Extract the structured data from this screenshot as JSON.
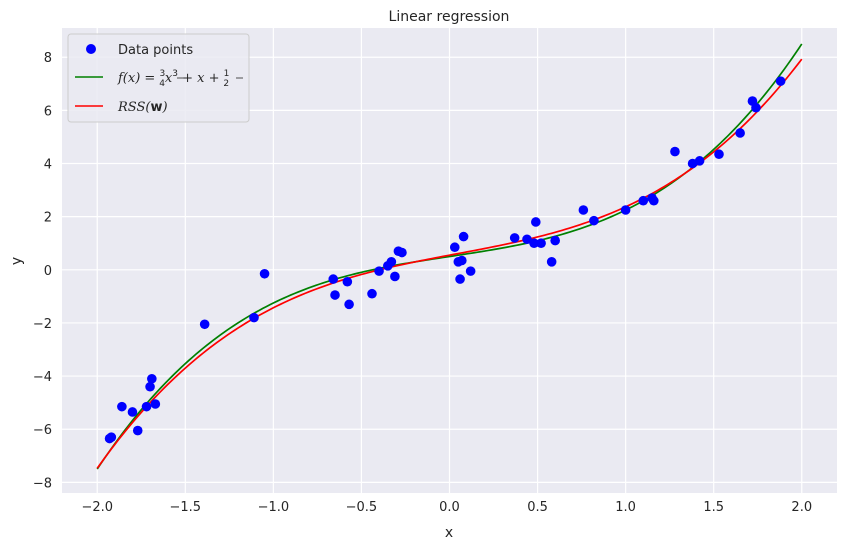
{
  "chart_data": {
    "type": "scatter",
    "title": "Linear regression",
    "xlabel": "x",
    "ylabel": "y",
    "xlim": [
      -2.2,
      2.2
    ],
    "ylim": [
      -8.4,
      9.1
    ],
    "xticks": [
      -2.0,
      -1.5,
      -1.0,
      -0.5,
      0.0,
      0.5,
      1.0,
      1.5,
      2.0
    ],
    "xtick_labels": [
      "−2.0",
      "−1.5",
      "−1.0",
      "−0.5",
      "0.0",
      "0.5",
      "1.0",
      "1.5",
      "2.0"
    ],
    "yticks": [
      -8,
      -6,
      -4,
      -2,
      0,
      2,
      4,
      6,
      8
    ],
    "ytick_labels": [
      "−8",
      "−6",
      "−4",
      "−2",
      "0",
      "2",
      "4",
      "6",
      "8"
    ],
    "grid": true,
    "legend_position": "top-left",
    "series": [
      {
        "name": "Data points",
        "kind": "scatter",
        "color": "#0000ff",
        "x": [
          -1.93,
          -1.92,
          -1.86,
          -1.8,
          -1.77,
          -1.72,
          -1.7,
          -1.69,
          -1.67,
          -1.39,
          -1.11,
          -1.05,
          -0.66,
          -0.65,
          -0.58,
          -0.57,
          -0.44,
          -0.4,
          -0.35,
          -0.33,
          -0.31,
          -0.29,
          -0.27,
          0.03,
          0.05,
          0.06,
          0.07,
          0.08,
          0.12,
          0.37,
          0.44,
          0.48,
          0.49,
          0.52,
          0.58,
          0.6,
          0.76,
          0.82,
          1.0,
          1.1,
          1.15,
          1.16,
          1.28,
          1.38,
          1.42,
          1.53,
          1.65,
          1.72,
          1.74,
          1.88
        ],
        "y": [
          -6.35,
          -6.3,
          -5.15,
          -5.35,
          -6.05,
          -5.15,
          -4.4,
          -4.1,
          -5.05,
          -2.05,
          -1.8,
          -0.15,
          -0.35,
          -0.95,
          -0.45,
          -1.3,
          -0.9,
          -0.05,
          0.15,
          0.3,
          -0.25,
          0.7,
          0.65,
          0.85,
          0.3,
          -0.35,
          0.35,
          1.25,
          -0.05,
          1.2,
          1.15,
          1.0,
          1.8,
          1.0,
          0.3,
          1.1,
          2.25,
          1.85,
          2.25,
          2.6,
          2.7,
          2.6,
          4.45,
          4.0,
          4.1,
          4.35,
          5.15,
          6.35,
          6.1,
          7.1
        ]
      },
      {
        "name_parts": [
          "f(x) = ",
          "3",
          "4",
          "x",
          "3",
          " + x + ",
          "1",
          "2"
        ],
        "kind": "line",
        "color": "#008000",
        "x_range": [
          -2.0,
          2.0
        ],
        "function": {
          "form": "cubic",
          "coefficients": [
            0.5,
            1.0,
            0.0,
            0.75
          ]
        }
      },
      {
        "name_parts": [
          "RSS(",
          "w",
          ")"
        ],
        "kind": "line",
        "color": "#ff0000",
        "x_range": [
          -2.0,
          2.0
        ],
        "function": {
          "form": "cubic",
          "coefficients": [
            0.55,
            1.25,
            -0.08,
            0.65
          ]
        }
      }
    ]
  }
}
